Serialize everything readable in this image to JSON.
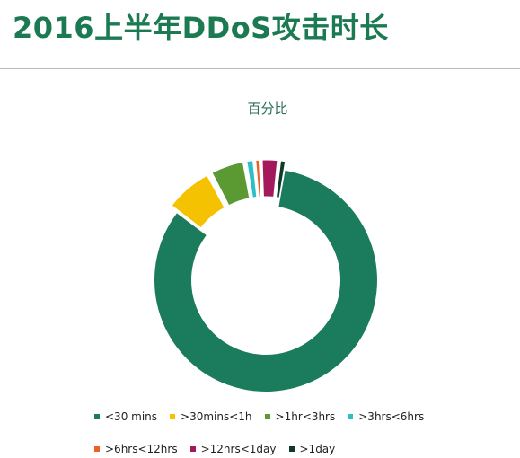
{
  "page": {
    "title": "2016上半年DDoS攻击时长"
  },
  "chart_data": {
    "type": "pie",
    "title": "百分比",
    "donut": true,
    "legend_position": "bottom",
    "categories": [
      "<30 mins",
      ">30mins<1h",
      ">1hr<3hrs",
      ">3hrs<6hrs",
      ">6hrs<12hrs",
      ">12hrs<1day",
      ">1day"
    ],
    "values": [
      82.5,
      7.0,
      5.0,
      1.2,
      0.8,
      2.5,
      1.0
    ],
    "colors": [
      "#1a7c5c",
      "#f4c200",
      "#5b9a33",
      "#2bbfc7",
      "#e8622a",
      "#a3195b",
      "#0f3b26"
    ]
  }
}
